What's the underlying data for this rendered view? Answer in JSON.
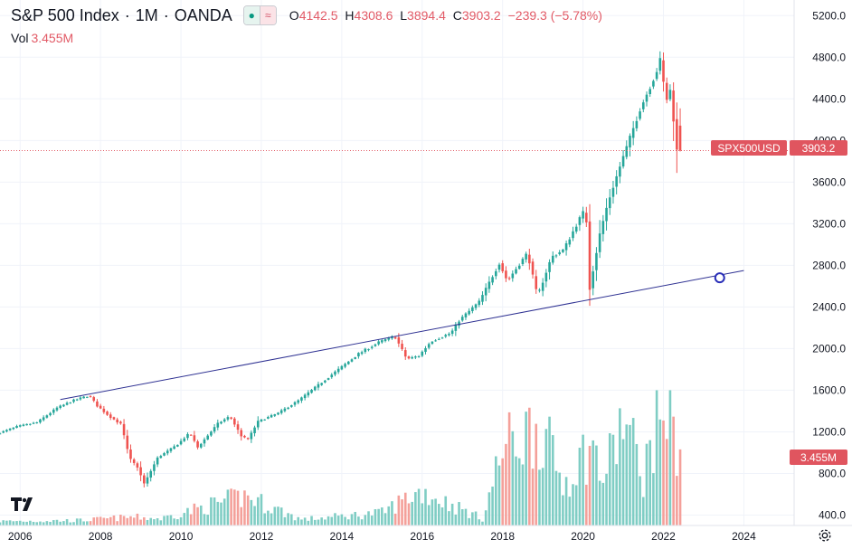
{
  "header": {
    "symbol": "S&P 500 Index",
    "interval": "1M",
    "exchange": "OANDA",
    "ohlc": {
      "open_label": "O",
      "open": "4142.5",
      "high_label": "H",
      "high": "4308.6",
      "low_label": "L",
      "low": "3894.4",
      "close_label": "C",
      "close": "3903.2",
      "change": "−239.3 (−5.78%)"
    },
    "volume_label": "Vol",
    "volume_value": "3.455M"
  },
  "colors": {
    "up": "#26a69a",
    "down": "#ef5350",
    "vol_up": "#7fcdc4",
    "vol_down": "#f4a09a",
    "trendline": "#2e3192",
    "grid": "#f0f3fa",
    "axis_text": "#131722",
    "price_tag": "#e0555f"
  },
  "price_tags": {
    "symbol_tag": "SPX500USD",
    "last_price": "3903.2",
    "volume_tag": "3.455M"
  },
  "chart_data": {
    "type": "candlestick",
    "title": "S&P 500 Index · 1M · OANDA",
    "xlabel": "",
    "ylabel": "",
    "x_ticks": [
      "2006",
      "2008",
      "2010",
      "2012",
      "2014",
      "2016",
      "2018",
      "2020",
      "2022",
      "2024"
    ],
    "y_ticks": [
      "5200.0",
      "4800.0",
      "4400.0",
      "4000.0",
      "3600.0",
      "3200.0",
      "2800.0",
      "2400.0",
      "2000.0",
      "1600.0",
      "1200.0",
      "800.0",
      "400.0"
    ],
    "ylim": [
      300,
      5350
    ],
    "xlim": [
      2005.5,
      2025.25
    ],
    "price_anchors": [
      [
        2005.5,
        1180
      ],
      [
        2006.0,
        1250
      ],
      [
        2006.5,
        1290
      ],
      [
        2007.0,
        1430
      ],
      [
        2007.4,
        1500
      ],
      [
        2007.8,
        1550
      ],
      [
        2008.0,
        1450
      ],
      [
        2008.3,
        1350
      ],
      [
        2008.6,
        1270
      ],
      [
        2008.8,
        950
      ],
      [
        2009.0,
        860
      ],
      [
        2009.17,
        700
      ],
      [
        2009.5,
        950
      ],
      [
        2010.0,
        1080
      ],
      [
        2010.3,
        1190
      ],
      [
        2010.5,
        1050
      ],
      [
        2011.0,
        1280
      ],
      [
        2011.3,
        1350
      ],
      [
        2011.6,
        1150
      ],
      [
        2011.75,
        1130
      ],
      [
        2012.0,
        1300
      ],
      [
        2012.5,
        1380
      ],
      [
        2013.0,
        1500
      ],
      [
        2013.5,
        1650
      ],
      [
        2014.0,
        1800
      ],
      [
        2014.5,
        1950
      ],
      [
        2015.0,
        2060
      ],
      [
        2015.4,
        2120
      ],
      [
        2015.7,
        1900
      ],
      [
        2016.0,
        1930
      ],
      [
        2016.3,
        2070
      ],
      [
        2016.8,
        2150
      ],
      [
        2017.0,
        2270
      ],
      [
        2017.5,
        2450
      ],
      [
        2018.0,
        2820
      ],
      [
        2018.2,
        2650
      ],
      [
        2018.7,
        2920
      ],
      [
        2018.95,
        2500
      ],
      [
        2019.3,
        2880
      ],
      [
        2019.6,
        2950
      ],
      [
        2020.0,
        3250
      ],
      [
        2020.15,
        3350
      ],
      [
        2020.25,
        2580
      ],
      [
        2020.5,
        3100
      ],
      [
        2020.7,
        3400
      ],
      [
        2021.0,
        3750
      ],
      [
        2021.5,
        4300
      ],
      [
        2021.9,
        4650
      ],
      [
        2022.0,
        4770
      ],
      [
        2022.15,
        4380
      ],
      [
        2022.3,
        4530
      ],
      [
        2022.34,
        4140
      ],
      [
        2022.38,
        3903
      ]
    ],
    "last_candle": {
      "open": 4142.5,
      "high": 4308.6,
      "low": 3894.4,
      "close": 3903.2,
      "volume": "3.455M"
    },
    "trendline": {
      "start": [
        2007.0,
        1510
      ],
      "end": [
        2024.0,
        2750
      ]
    },
    "trendline_marker": [
      2023.4,
      2680
    ],
    "horizontal_line": 3903.2,
    "volume_anchors": [
      [
        2005.5,
        0.05
      ],
      [
        2007.5,
        0.06
      ],
      [
        2008.8,
        0.1
      ],
      [
        2009.5,
        0.08
      ],
      [
        2011.6,
        0.35
      ],
      [
        2013.0,
        0.07
      ],
      [
        2015.0,
        0.15
      ],
      [
        2015.7,
        0.35
      ],
      [
        2016.0,
        0.4
      ],
      [
        2017.5,
        0.08
      ],
      [
        2018.0,
        0.9
      ],
      [
        2018.9,
        1.2
      ],
      [
        2019.5,
        0.5
      ],
      [
        2020.2,
        0.95
      ],
      [
        2020.5,
        0.55
      ],
      [
        2021.0,
        1.25
      ],
      [
        2021.5,
        0.6
      ],
      [
        2022.0,
        1.5
      ],
      [
        2022.38,
        0.9
      ]
    ],
    "volume_scale_top": 1600
  }
}
